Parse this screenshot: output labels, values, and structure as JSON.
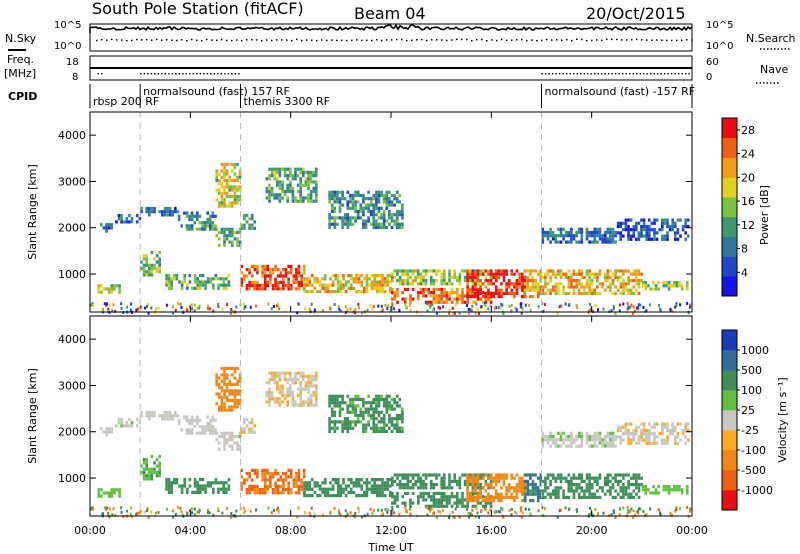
{
  "header": {
    "title": "South Pole Station (fitACF)",
    "beam": "Beam 04",
    "date": "20/Oct/2015"
  },
  "noise_panel": {
    "left_label": "N.Sky",
    "right_label": "N.Search",
    "left_ticks": [
      "10^5",
      "10^0"
    ],
    "right_ticks": [
      "10^5",
      "10^0"
    ]
  },
  "freq_panel": {
    "left_label_1": "Freq.",
    "left_label_2": "[MHz]",
    "right_label": "Nave",
    "left_ticks": [
      "18",
      "8"
    ],
    "right_ticks": [
      "60",
      "0"
    ]
  },
  "cpid_panel": {
    "label": "CPID",
    "segments": [
      {
        "start": 0.0,
        "end": 2.0,
        "text": "rbsp 200 RF",
        "row": 2
      },
      {
        "start": 2.0,
        "end": 6.0,
        "text": "normalsound (fast) 157 RF",
        "row": 1
      },
      {
        "start": 6.0,
        "end": 18.0,
        "text": "themis 3300 RF",
        "row": 2
      },
      {
        "start": 18.0,
        "end": 24.0,
        "text": "normalsound (fast) -157 RF",
        "row": 1
      }
    ]
  },
  "power_panel": {
    "ylabel": "Slant Range [km]",
    "cbar_label": "Power [dB]",
    "cbar_ticks": [
      "4",
      "8",
      "12",
      "16",
      "20",
      "24",
      "28"
    ],
    "y_ticks": [
      "1000",
      "2000",
      "3000",
      "4000"
    ]
  },
  "velocity_panel": {
    "ylabel": "Slant Range [km]",
    "cbar_label": "Velocity [m s⁻¹]",
    "cbar_ticks": [
      "-1000",
      "-500",
      "-100",
      "-25",
      "25",
      "100",
      "500",
      "1000"
    ],
    "y_ticks": [
      "1000",
      "2000",
      "3000",
      "4000"
    ]
  },
  "x_axis": {
    "label": "Time UT",
    "ticks": [
      "00:00",
      "04:00",
      "08:00",
      "12:00",
      "16:00",
      "20:00",
      "00:00"
    ]
  },
  "chart_data": {
    "type": "heatmap",
    "title": "South Pole Station (fitACF)",
    "subtitle": "Beam 04  20/Oct/2015",
    "xlabel": "Time UT",
    "ylabel": "Slant Range [km]",
    "xlim": [
      0,
      24
    ],
    "ylim": [
      180,
      4500
    ],
    "x_unit": "hours UT",
    "mode_change_times": [
      2.0,
      6.0,
      18.0
    ],
    "power_colorscale": {
      "label": "Power [dB]",
      "range": [
        0,
        30
      ],
      "colors": [
        "#1414e6",
        "#1e46c8",
        "#2e78a0",
        "#3e9a6e",
        "#7cc040",
        "#e0d020",
        "#f09a18",
        "#f06010",
        "#e81010"
      ]
    },
    "velocity_colorscale": {
      "label": "Velocity [m s⁻¹]",
      "levels": [
        -1000,
        -500,
        -100,
        -25,
        25,
        100,
        500,
        1000
      ],
      "colors": [
        "#e81010",
        "#f06010",
        "#f08818",
        "#ffaa22",
        "#c8c8c0",
        "#60c040",
        "#3e8e58",
        "#2e6ea0",
        "#1a3cb8"
      ]
    },
    "echo_bands": [
      {
        "name": "",
        "t_start": 0.3,
        "t_end": 1.2,
        "r_start": 620,
        "r_end": 780,
        "power": 16,
        "velocity": 40
      },
      {
        "name": "",
        "t_start": 0.4,
        "t_end": 1.0,
        "r_start": 1900,
        "r_end": 2100,
        "power": 6,
        "velocity": 8
      },
      {
        "name": "",
        "t_start": 1.0,
        "t_end": 2.0,
        "r_start": 2100,
        "r_end": 2300,
        "power": 7,
        "velocity": 10
      },
      {
        "name": "",
        "t_start": 2.0,
        "t_end": 3.5,
        "r_start": 2250,
        "r_end": 2450,
        "power": 8,
        "velocity": 5
      },
      {
        "name": "",
        "t_start": 3.5,
        "t_end": 5.0,
        "r_start": 1950,
        "r_end": 2350,
        "power": 10,
        "velocity": -5
      },
      {
        "name": "",
        "t_start": 5.0,
        "t_end": 6.0,
        "r_start": 1650,
        "r_end": 2000,
        "power": 12,
        "velocity": 10
      },
      {
        "name": "",
        "t_start": 6.0,
        "t_end": 6.6,
        "r_start": 2000,
        "r_end": 2300,
        "power": 12,
        "velocity": -20
      },
      {
        "name": "",
        "t_start": 2.0,
        "t_end": 2.8,
        "r_start": 1000,
        "r_end": 1500,
        "power": 14,
        "velocity": 80
      },
      {
        "name": "",
        "t_start": 3.0,
        "t_end": 5.5,
        "r_start": 700,
        "r_end": 1000,
        "power": 14,
        "velocity": 200
      },
      {
        "name": "",
        "t_start": 5.0,
        "t_end": 6.0,
        "r_start": 2500,
        "r_end": 3400,
        "power": 18,
        "velocity": -200
      },
      {
        "name": "",
        "t_start": 6.0,
        "t_end": 8.5,
        "r_start": 700,
        "r_end": 1200,
        "power": 26,
        "velocity": -600
      },
      {
        "name": "",
        "t_start": 8.5,
        "t_end": 12.0,
        "r_start": 600,
        "r_end": 1000,
        "power": 20,
        "velocity": 300
      },
      {
        "name": "",
        "t_start": 12.0,
        "t_end": 16.0,
        "r_start": 400,
        "r_end": 700,
        "power": 24,
        "velocity": 300
      },
      {
        "name": "",
        "t_start": 12.0,
        "t_end": 16.0,
        "r_start": 800,
        "r_end": 1100,
        "power": 16,
        "velocity": 200
      },
      {
        "name": "",
        "t_start": 15.0,
        "t_end": 17.3,
        "r_start": 500,
        "r_end": 1100,
        "power": 28,
        "velocity": -300
      },
      {
        "name": "",
        "t_start": 17.3,
        "t_end": 18.0,
        "r_start": 500,
        "r_end": 1100,
        "power": 20,
        "velocity": 600
      },
      {
        "name": "",
        "t_start": 18.0,
        "t_end": 22.0,
        "r_start": 600,
        "r_end": 1100,
        "power": 20,
        "velocity": 200
      },
      {
        "name": "",
        "t_start": 22.0,
        "t_end": 23.8,
        "r_start": 650,
        "r_end": 850,
        "power": 16,
        "velocity": 60
      },
      {
        "name": "",
        "t_start": 18.0,
        "t_end": 21.0,
        "r_start": 1700,
        "r_end": 2000,
        "power": 8,
        "velocity": 15
      },
      {
        "name": "",
        "t_start": 21.0,
        "t_end": 23.8,
        "r_start": 1750,
        "r_end": 2200,
        "power": 6,
        "velocity": -15
      },
      {
        "name": "",
        "t_start": 7.0,
        "t_end": 9.0,
        "r_start": 2600,
        "r_end": 3300,
        "power": 12,
        "velocity": -20
      },
      {
        "name": "",
        "t_start": 9.5,
        "t_end": 12.5,
        "r_start": 2000,
        "r_end": 2800,
        "power": 10,
        "velocity": 150
      }
    ]
  }
}
